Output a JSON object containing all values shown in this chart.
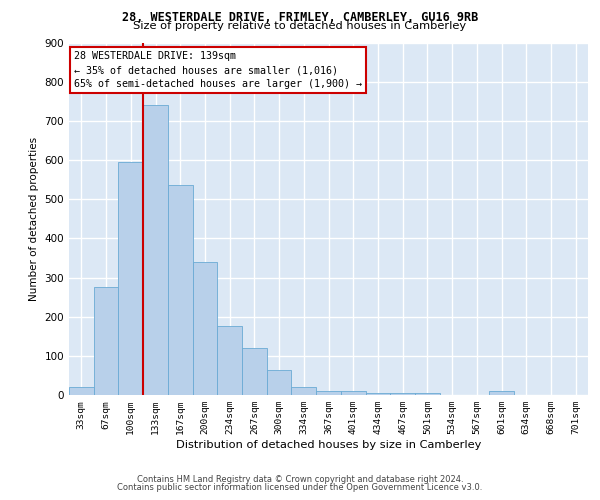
{
  "title1": "28, WESTERDALE DRIVE, FRIMLEY, CAMBERLEY, GU16 9RB",
  "title2": "Size of property relative to detached houses in Camberley",
  "xlabel": "Distribution of detached houses by size in Camberley",
  "ylabel": "Number of detached properties",
  "bar_color": "#b8d0ea",
  "bar_edge_color": "#6aaad4",
  "background_color": "#dce8f5",
  "annotation_line1": "28 WESTERDALE DRIVE: 139sqm",
  "annotation_line2": "← 35% of detached houses are smaller (1,016)",
  "annotation_line3": "65% of semi-detached houses are larger (1,900) →",
  "property_line_color": "#cc0000",
  "annotation_box_color": "#ffffff",
  "annotation_box_edge": "#cc0000",
  "categories": [
    "33sqm",
    "67sqm",
    "100sqm",
    "133sqm",
    "167sqm",
    "200sqm",
    "234sqm",
    "267sqm",
    "300sqm",
    "334sqm",
    "367sqm",
    "401sqm",
    "434sqm",
    "467sqm",
    "501sqm",
    "534sqm",
    "567sqm",
    "601sqm",
    "634sqm",
    "668sqm",
    "701sqm"
  ],
  "values": [
    20,
    275,
    595,
    740,
    535,
    340,
    175,
    120,
    65,
    20,
    10,
    10,
    5,
    5,
    5,
    0,
    0,
    10,
    0,
    0,
    0
  ],
  "ylim": [
    0,
    900
  ],
  "yticks": [
    0,
    100,
    200,
    300,
    400,
    500,
    600,
    700,
    800,
    900
  ],
  "footer1": "Contains HM Land Registry data © Crown copyright and database right 2024.",
  "footer2": "Contains public sector information licensed under the Open Government Licence v3.0."
}
